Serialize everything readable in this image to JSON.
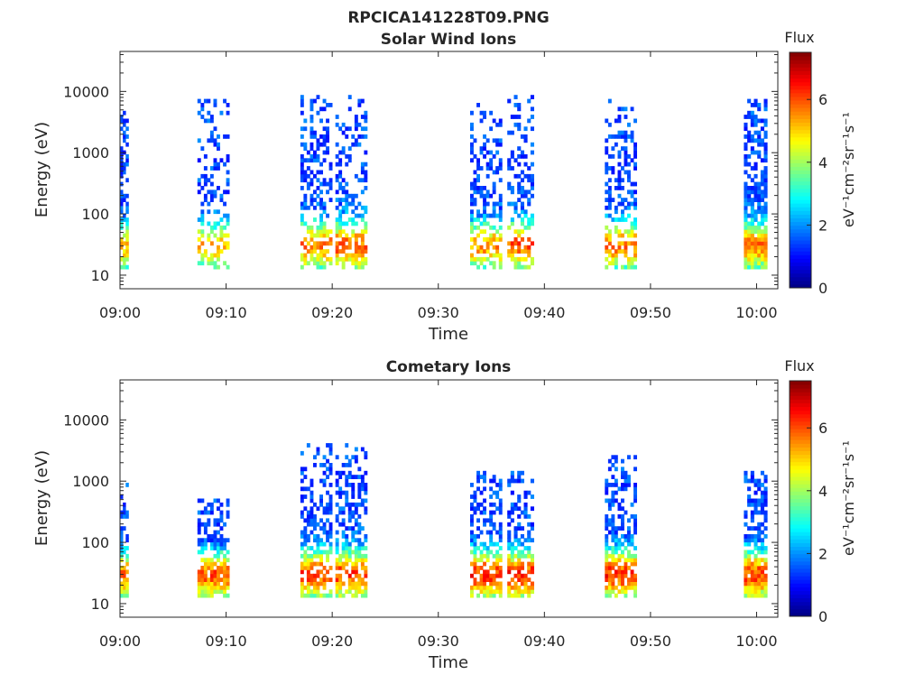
{
  "figure_title": "RPCICA141228T09.PNG",
  "chart_data": [
    {
      "type": "heatmap",
      "title": "Solar Wind Ions",
      "xlabel": "Time",
      "ylabel": "Energy (eV)",
      "x_ticks": [
        "09:00",
        "09:10",
        "09:20",
        "09:30",
        "09:40",
        "09:50",
        "10:00"
      ],
      "y_ticks": [
        "10",
        "100",
        "1000",
        "10000"
      ],
      "y_scale": "log",
      "ylim": [
        6,
        45000
      ],
      "xlim_minutes": [
        0,
        62
      ],
      "colorbar": {
        "title": "Flux",
        "unit": "eV⁻¹cm⁻²sr⁻¹s⁻¹",
        "ticks": [
          "0",
          "2",
          "4",
          "6"
        ],
        "range": [
          0,
          7.5
        ],
        "colormap": "jet"
      },
      "bursts": [
        {
          "start_min": 0.0,
          "end_min": 0.8,
          "high_energy_ev": 6000,
          "peak_flux": 6.0,
          "density": 0.75
        },
        {
          "start_min": 7.3,
          "end_min": 10.3,
          "high_energy_ev": 8000,
          "peak_flux": 6.0,
          "density": 0.45
        },
        {
          "start_min": 17.0,
          "end_min": 20.0,
          "high_energy_ev": 9000,
          "peak_flux": 6.5,
          "density": 0.6
        },
        {
          "start_min": 20.3,
          "end_min": 23.3,
          "high_energy_ev": 9000,
          "peak_flux": 6.8,
          "density": 0.6
        },
        {
          "start_min": 33.0,
          "end_min": 36.0,
          "high_energy_ev": 7000,
          "peak_flux": 6.3,
          "density": 0.55
        },
        {
          "start_min": 36.5,
          "end_min": 39.0,
          "high_energy_ev": 9000,
          "peak_flux": 6.8,
          "density": 0.55
        },
        {
          "start_min": 45.7,
          "end_min": 48.7,
          "high_energy_ev": 8000,
          "peak_flux": 6.5,
          "density": 0.55
        },
        {
          "start_min": 58.8,
          "end_min": 61.0,
          "high_energy_ev": 8000,
          "peak_flux": 6.5,
          "density": 0.95
        }
      ]
    },
    {
      "type": "heatmap",
      "title": "Cometary Ions",
      "xlabel": "Time",
      "ylabel": "Energy (eV)",
      "x_ticks": [
        "09:00",
        "09:10",
        "09:20",
        "09:30",
        "09:40",
        "09:50",
        "10:00"
      ],
      "y_ticks": [
        "10",
        "100",
        "1000",
        "10000"
      ],
      "y_scale": "log",
      "ylim": [
        6,
        45000
      ],
      "xlim_minutes": [
        0,
        62
      ],
      "colorbar": {
        "title": "Flux",
        "unit": "eV⁻¹cm⁻²sr⁻¹s⁻¹",
        "ticks": [
          "0",
          "2",
          "4",
          "6"
        ],
        "range": [
          0,
          7.5
        ],
        "colormap": "jet"
      },
      "bursts": [
        {
          "start_min": 0.0,
          "end_min": 0.8,
          "high_energy_ev": 1200,
          "peak_flux": 6.5,
          "density": 0.75
        },
        {
          "start_min": 7.3,
          "end_min": 10.3,
          "high_energy_ev": 500,
          "peak_flux": 6.8,
          "density": 0.7
        },
        {
          "start_min": 17.0,
          "end_min": 20.0,
          "high_energy_ev": 4000,
          "peak_flux": 7.0,
          "density": 0.7
        },
        {
          "start_min": 20.3,
          "end_min": 23.3,
          "high_energy_ev": 4000,
          "peak_flux": 7.0,
          "density": 0.7
        },
        {
          "start_min": 33.0,
          "end_min": 36.0,
          "high_energy_ev": 1500,
          "peak_flux": 7.2,
          "density": 0.7
        },
        {
          "start_min": 36.5,
          "end_min": 39.0,
          "high_energy_ev": 1500,
          "peak_flux": 7.2,
          "density": 0.7
        },
        {
          "start_min": 45.7,
          "end_min": 48.7,
          "high_energy_ev": 2500,
          "peak_flux": 7.2,
          "density": 0.7
        },
        {
          "start_min": 58.8,
          "end_min": 61.0,
          "high_energy_ev": 1500,
          "peak_flux": 7.0,
          "density": 0.95
        }
      ]
    }
  ]
}
